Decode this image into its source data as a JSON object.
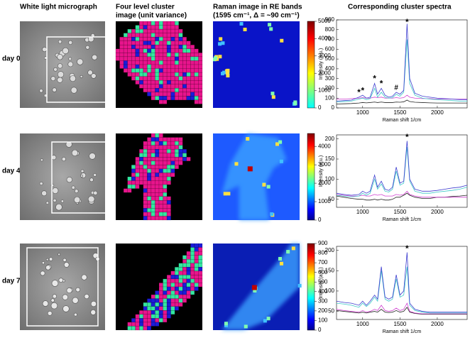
{
  "column_titles": [
    [
      "White light  micrograph"
    ],
    [
      "Four level  cluster",
      "image (unit variance)"
    ],
    [
      "Raman image in RE bands",
      "(1595 cm⁻¹, Δ = ~90 cm⁻¹)"
    ],
    [
      "Corresponding cluster spectra"
    ]
  ],
  "row_labels": [
    "day 0",
    "day 4",
    "day 7"
  ],
  "colorbars": [
    {
      "lim": [
        0,
        5000
      ],
      "ticks": [
        0,
        1000,
        2000,
        3000,
        4000,
        5000
      ]
    },
    {
      "lim": [
        0,
        4700
      ],
      "ticks": [
        0,
        1000,
        2000,
        3000,
        4000
      ]
    },
    {
      "lim": [
        0,
        900
      ],
      "ticks": [
        0,
        100,
        200,
        300,
        400,
        500,
        600,
        700,
        800,
        900
      ]
    }
  ],
  "chart_data": [
    {
      "type": "line",
      "x_label": "Raman shift 1/cm",
      "y_label": "Intensity (a.u.)",
      "x": [
        650,
        750,
        850,
        950,
        1000,
        1050,
        1100,
        1160,
        1200,
        1250,
        1300,
        1350,
        1400,
        1450,
        1500,
        1550,
        1595,
        1630,
        1700,
        1800,
        1900,
        2000,
        2100,
        2200,
        2300,
        2400
      ],
      "xlim": [
        650,
        2400
      ],
      "xticks": [
        1000,
        1500,
        2000
      ],
      "ylim": [
        0,
        900
      ],
      "yticks": [
        0,
        100,
        200,
        300,
        400,
        500,
        600,
        700,
        800,
        900
      ],
      "series": [
        {
          "color": "#3c3ccf",
          "values": [
            70,
            75,
            80,
            110,
            130,
            100,
            110,
            250,
            140,
            200,
            130,
            110,
            120,
            160,
            140,
            180,
            860,
            300,
            150,
            120,
            110,
            100,
            95,
            90,
            85,
            85
          ]
        },
        {
          "color": "#3cc8c8",
          "values": [
            60,
            65,
            70,
            90,
            100,
            85,
            95,
            200,
            110,
            160,
            110,
            100,
            105,
            140,
            120,
            160,
            700,
            250,
            130,
            100,
            90,
            85,
            80,
            75,
            70,
            70
          ]
        },
        {
          "color": "#d040d0",
          "values": [
            90,
            90,
            95,
            100,
            105,
            100,
            100,
            110,
            105,
            110,
            100,
            100,
            100,
            105,
            100,
            105,
            130,
            110,
            100,
            95,
            95,
            90,
            90,
            90,
            90,
            90
          ]
        },
        {
          "color": "#222222",
          "values": [
            40,
            42,
            45,
            50,
            55,
            52,
            55,
            60,
            55,
            60,
            55,
            55,
            55,
            60,
            58,
            62,
            80,
            65,
            58,
            55,
            52,
            50,
            50,
            50,
            50,
            50
          ]
        }
      ],
      "annotations": [
        {
          "text": "*",
          "x": 950
        },
        {
          "text": "*",
          "x": 1000
        },
        {
          "text": "*",
          "x": 1160
        },
        {
          "text": "*",
          "x": 1250
        },
        {
          "text": "#",
          "x": 1450
        },
        {
          "text": "*",
          "x": 1595
        }
      ]
    },
    {
      "type": "line",
      "x_label": "Raman shift 1/cm",
      "y_label": "Intensity (a.u.)",
      "x": [
        650,
        750,
        850,
        950,
        1000,
        1050,
        1100,
        1160,
        1200,
        1250,
        1300,
        1350,
        1400,
        1450,
        1500,
        1550,
        1595,
        1630,
        1700,
        1800,
        1900,
        2000,
        2100,
        2200,
        2300,
        2400
      ],
      "xlim": [
        650,
        2400
      ],
      "xticks": [
        1000,
        1500,
        2000
      ],
      "ylim": [
        30,
        210
      ],
      "yticks": [
        50,
        100,
        150,
        200
      ],
      "series": [
        {
          "color": "#3c3ccf",
          "values": [
            65,
            62,
            60,
            62,
            70,
            65,
            70,
            110,
            80,
            95,
            75,
            72,
            80,
            130,
            90,
            95,
            195,
            100,
            75,
            70,
            70,
            72,
            75,
            78,
            80,
            85
          ]
        },
        {
          "color": "#3cc8c8",
          "values": [
            60,
            58,
            56,
            58,
            65,
            60,
            65,
            100,
            75,
            88,
            70,
            68,
            75,
            120,
            85,
            90,
            180,
            95,
            70,
            65,
            65,
            68,
            70,
            72,
            75,
            80
          ]
        },
        {
          "color": "#d040d0",
          "values": [
            62,
            60,
            58,
            58,
            60,
            58,
            58,
            62,
            60,
            62,
            58,
            58,
            58,
            62,
            60,
            62,
            70,
            62,
            58,
            55,
            55,
            55,
            55,
            55,
            55,
            55
          ]
        },
        {
          "color": "#222222",
          "values": [
            58,
            55,
            52,
            50,
            50,
            48,
            48,
            50,
            48,
            50,
            48,
            48,
            50,
            55,
            55,
            60,
            65,
            60,
            55,
            52,
            52,
            55,
            55,
            57,
            58,
            60
          ]
        }
      ],
      "annotations": [
        {
          "text": "*",
          "x": 1595
        }
      ]
    },
    {
      "type": "line",
      "x_label": "Raman shift 1/cm",
      "y_label": "Intensity (a.u.)",
      "x": [
        650,
        750,
        850,
        950,
        1000,
        1050,
        1100,
        1160,
        1200,
        1250,
        1300,
        1350,
        1400,
        1450,
        1500,
        1550,
        1595,
        1630,
        1700,
        1800,
        1900,
        2000,
        2100,
        2200,
        2300,
        2400
      ],
      "xlim": [
        650,
        2400
      ],
      "xticks": [
        1000,
        1500,
        2000
      ],
      "ylim": [
        30,
        210
      ],
      "yticks": [
        50,
        100,
        150,
        200
      ],
      "series": [
        {
          "color": "#3c3ccf",
          "values": [
            75,
            72,
            70,
            65,
            75,
            65,
            75,
            90,
            80,
            160,
            85,
            80,
            85,
            140,
            90,
            100,
            195,
            70,
            55,
            50,
            48,
            48,
            48,
            48,
            48,
            48
          ]
        },
        {
          "color": "#3cc8c8",
          "values": [
            70,
            68,
            65,
            60,
            70,
            62,
            70,
            85,
            75,
            150,
            80,
            75,
            80,
            130,
            85,
            90,
            160,
            65,
            52,
            48,
            46,
            46,
            46,
            46,
            46,
            46
          ]
        },
        {
          "color": "#d040d0",
          "values": [
            55,
            52,
            50,
            48,
            52,
            48,
            50,
            55,
            52,
            65,
            52,
            50,
            52,
            58,
            52,
            55,
            70,
            50,
            46,
            44,
            44,
            44,
            44,
            44,
            44,
            44
          ]
        },
        {
          "color": "#222222",
          "values": [
            52,
            50,
            48,
            46,
            48,
            46,
            48,
            50,
            48,
            55,
            48,
            47,
            48,
            52,
            48,
            50,
            60,
            48,
            45,
            43,
            43,
            43,
            43,
            43,
            43,
            43
          ]
        }
      ],
      "annotations": [
        {
          "text": "*",
          "x": 1595
        }
      ]
    }
  ]
}
